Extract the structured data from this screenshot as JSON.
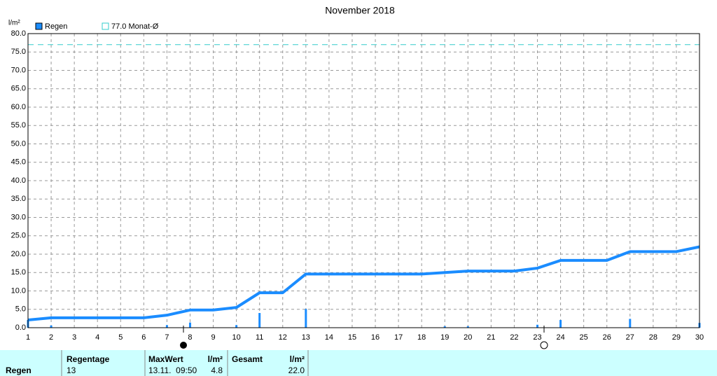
{
  "chart_data": {
    "type": "bar",
    "title": "November 2018",
    "y_label": "l/m²",
    "x": [
      1,
      2,
      3,
      4,
      5,
      6,
      7,
      8,
      9,
      10,
      11,
      12,
      13,
      14,
      15,
      16,
      17,
      18,
      19,
      20,
      21,
      22,
      23,
      24,
      25,
      26,
      27,
      28,
      29,
      30
    ],
    "xlim": [
      1,
      30
    ],
    "xticks": [
      1,
      2,
      3,
      4,
      5,
      6,
      7,
      8,
      9,
      10,
      11,
      12,
      13,
      14,
      15,
      16,
      17,
      18,
      19,
      20,
      21,
      22,
      23,
      24,
      25,
      26,
      27,
      28,
      29,
      30
    ],
    "ylim": [
      0,
      80
    ],
    "yticks": [
      {
        "value": 0,
        "label": "0.0"
      },
      {
        "value": 5,
        "label": "5.0"
      },
      {
        "value": 10,
        "label": "10.0"
      },
      {
        "value": 15,
        "label": "15.0"
      },
      {
        "value": 20,
        "label": "20.0"
      },
      {
        "value": 25,
        "label": "25.0"
      },
      {
        "value": 30,
        "label": "30.0"
      },
      {
        "value": 35,
        "label": "35.0"
      },
      {
        "value": 40,
        "label": "40.0"
      },
      {
        "value": 45,
        "label": "45.0"
      },
      {
        "value": 50,
        "label": "50.0"
      },
      {
        "value": 55,
        "label": "55.0"
      },
      {
        "value": 60,
        "label": "60.0"
      },
      {
        "value": 65,
        "label": "65.0"
      },
      {
        "value": 70,
        "label": "70.0"
      },
      {
        "value": 75,
        "label": "75.0"
      },
      {
        "value": 80,
        "label": "80.0"
      }
    ],
    "grid": true,
    "series": [
      {
        "name": "Regen",
        "color": "#1a8cff",
        "values": [
          2.1,
          0.6,
          0,
          0,
          0,
          0,
          0.7,
          1.4,
          0,
          0.7,
          4.0,
          0,
          5.1,
          0,
          0,
          0,
          0,
          0,
          0.4,
          0.4,
          0,
          0,
          0.8,
          2.1,
          0,
          0,
          2.4,
          0,
          0,
          1.3
        ],
        "cumulative": [
          2.1,
          2.7,
          2.7,
          2.7,
          2.7,
          2.7,
          3.4,
          4.8,
          4.8,
          5.5,
          9.5,
          9.5,
          14.6,
          14.6,
          14.6,
          14.6,
          14.6,
          14.6,
          15.0,
          15.4,
          15.4,
          15.4,
          16.2,
          18.3,
          18.3,
          18.3,
          20.7,
          20.7,
          20.7,
          22.0
        ]
      }
    ],
    "reference": {
      "value": 77.0,
      "label": "77.0 Monat-Ø",
      "color": "#33cccc"
    }
  },
  "table": {
    "header": [
      "Regentage",
      "MaxWert",
      "l/m²",
      "Gesamt",
      "l/m²"
    ],
    "rows": [
      [
        "Regen",
        "13",
        "13.11.  09:50",
        "4.8",
        "22.0"
      ]
    ]
  }
}
